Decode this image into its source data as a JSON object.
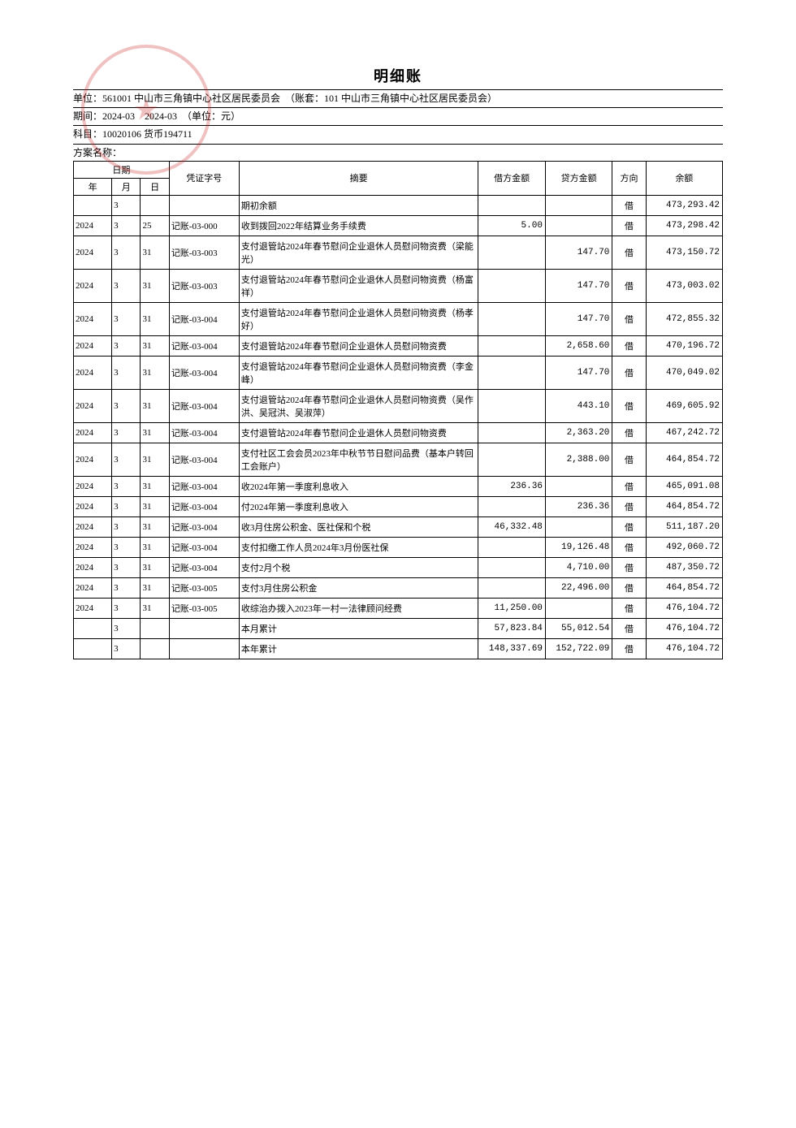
{
  "title": "明细账",
  "meta": {
    "unit_label": "单位：",
    "unit_value": "561001 中山市三角镇中心社区居民委员会　（账套：101 中山市三角镇中心社区居民委员会）",
    "period_label": "期间：",
    "period_value": "2024-03　2024-03　（单位：元）",
    "subject_label": "科目：",
    "subject_value": "10020106 货币194711",
    "plan_label": "方案名称："
  },
  "headers": {
    "date": "日期",
    "year": "年",
    "month": "月",
    "day": "日",
    "voucher": "凭证字号",
    "summary": "摘要",
    "debit": "借方金额",
    "credit": "贷方金额",
    "direction": "方向",
    "balance": "余额"
  },
  "rows": [
    {
      "year": "",
      "month": "3",
      "day": "",
      "voucher": "",
      "summary": "期初余额",
      "debit": "",
      "credit": "",
      "dir": "借",
      "balance": "473,293.42"
    },
    {
      "year": "2024",
      "month": "3",
      "day": "25",
      "voucher": "记账-03-000",
      "summary": "收到拨回2022年结算业务手续费",
      "debit": "5.00",
      "credit": "",
      "dir": "借",
      "balance": "473,298.42"
    },
    {
      "year": "2024",
      "month": "3",
      "day": "31",
      "voucher": "记账-03-003",
      "summary": "支付退管站2024年春节慰问企业退休人员慰问物资费（梁能光）",
      "debit": "",
      "credit": "147.70",
      "dir": "借",
      "balance": "473,150.72"
    },
    {
      "year": "2024",
      "month": "3",
      "day": "31",
      "voucher": "记账-03-003",
      "summary": "支付退管站2024年春节慰问企业退休人员慰问物资费（杨富祥）",
      "debit": "",
      "credit": "147.70",
      "dir": "借",
      "balance": "473,003.02"
    },
    {
      "year": "2024",
      "month": "3",
      "day": "31",
      "voucher": "记账-03-004",
      "summary": "支付退管站2024年春节慰问企业退休人员慰问物资费（杨孝好）",
      "debit": "",
      "credit": "147.70",
      "dir": "借",
      "balance": "472,855.32"
    },
    {
      "year": "2024",
      "month": "3",
      "day": "31",
      "voucher": "记账-03-004",
      "summary": "支付退管站2024年春节慰问企业退休人员慰问物资费",
      "debit": "",
      "credit": "2,658.60",
      "dir": "借",
      "balance": "470,196.72"
    },
    {
      "year": "2024",
      "month": "3",
      "day": "31",
      "voucher": "记账-03-004",
      "summary": "支付退管站2024年春节慰问企业退休人员慰问物资费（李金峰）",
      "debit": "",
      "credit": "147.70",
      "dir": "借",
      "balance": "470,049.02"
    },
    {
      "year": "2024",
      "month": "3",
      "day": "31",
      "voucher": "记账-03-004",
      "summary": "支付退管站2024年春节慰问企业退休人员慰问物资费（吴作洪、吴冠洪、吴淑萍）",
      "debit": "",
      "credit": "443.10",
      "dir": "借",
      "balance": "469,605.92"
    },
    {
      "year": "2024",
      "month": "3",
      "day": "31",
      "voucher": "记账-03-004",
      "summary": "支付退管站2024年春节慰问企业退休人员慰问物资费",
      "debit": "",
      "credit": "2,363.20",
      "dir": "借",
      "balance": "467,242.72"
    },
    {
      "year": "2024",
      "month": "3",
      "day": "31",
      "voucher": "记账-03-004",
      "summary": "支付社区工会会员2023年中秋节节日慰问品费（基本户转回工会账户）",
      "debit": "",
      "credit": "2,388.00",
      "dir": "借",
      "balance": "464,854.72"
    },
    {
      "year": "2024",
      "month": "3",
      "day": "31",
      "voucher": "记账-03-004",
      "summary": "收2024年第一季度利息收入",
      "debit": "236.36",
      "credit": "",
      "dir": "借",
      "balance": "465,091.08"
    },
    {
      "year": "2024",
      "month": "3",
      "day": "31",
      "voucher": "记账-03-004",
      "summary": "付2024年第一季度利息收入",
      "debit": "",
      "credit": "236.36",
      "dir": "借",
      "balance": "464,854.72"
    },
    {
      "year": "2024",
      "month": "3",
      "day": "31",
      "voucher": "记账-03-004",
      "summary": "收3月住房公积金、医社保和个税",
      "debit": "46,332.48",
      "credit": "",
      "dir": "借",
      "balance": "511,187.20"
    },
    {
      "year": "2024",
      "month": "3",
      "day": "31",
      "voucher": "记账-03-004",
      "summary": "支付扣缴工作人员2024年3月份医社保",
      "debit": "",
      "credit": "19,126.48",
      "dir": "借",
      "balance": "492,060.72"
    },
    {
      "year": "2024",
      "month": "3",
      "day": "31",
      "voucher": "记账-03-004",
      "summary": "支付2月个税",
      "debit": "",
      "credit": "4,710.00",
      "dir": "借",
      "balance": "487,350.72"
    },
    {
      "year": "2024",
      "month": "3",
      "day": "31",
      "voucher": "记账-03-005",
      "summary": "支付3月住房公积金",
      "debit": "",
      "credit": "22,496.00",
      "dir": "借",
      "balance": "464,854.72"
    },
    {
      "year": "2024",
      "month": "3",
      "day": "31",
      "voucher": "记账-03-005",
      "summary": "收综治办拨入2023年一村一法律顾问经费",
      "debit": "11,250.00",
      "credit": "",
      "dir": "借",
      "balance": "476,104.72"
    },
    {
      "year": "",
      "month": "3",
      "day": "",
      "voucher": "",
      "summary": "本月累计",
      "debit": "57,823.84",
      "credit": "55,012.54",
      "dir": "借",
      "balance": "476,104.72"
    },
    {
      "year": "",
      "month": "3",
      "day": "",
      "voucher": "",
      "summary": "本年累计",
      "debit": "148,337.69",
      "credit": "152,722.09",
      "dir": "借",
      "balance": "476,104.72"
    }
  ]
}
